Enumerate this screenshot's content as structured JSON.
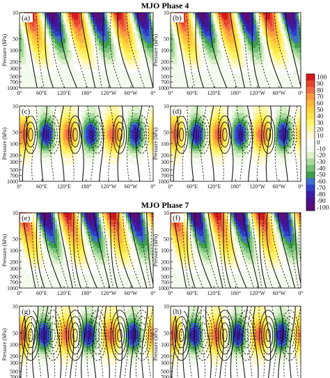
{
  "figure": {
    "sections": [
      {
        "title": "MJO Phase 4",
        "panels": [
          {
            "label": "(a)",
            "contour_style": "broad_tilted"
          },
          {
            "label": "(b)",
            "contour_style": "broad_tilted"
          },
          {
            "label": "(c)",
            "contour_style": "vertical_wavenumber6"
          },
          {
            "label": "(d)",
            "contour_style": "vertical_wavenumber6"
          }
        ]
      },
      {
        "title": "MJO Phase 7",
        "panels": [
          {
            "label": "(e)",
            "contour_style": "broad_tilted_dense"
          },
          {
            "label": "(f)",
            "contour_style": "broad_tilted_dense"
          },
          {
            "label": "(g)",
            "contour_style": "vertical_wavenumber6_dense"
          },
          {
            "label": "(h)",
            "contour_style": "vertical_wavenumber6_dense"
          }
        ]
      }
    ],
    "y_axis_label": "Pressure (hPa)",
    "y_ticks": [
      "10",
      "50",
      "100",
      "200",
      "300",
      "500",
      "700",
      "1000"
    ],
    "x_ticks": [
      "0°",
      "60°E",
      "120°E",
      "180°",
      "120°W",
      "60°W",
      "0°"
    ],
    "colorbar": {
      "labels": [
        "100",
        "90",
        "80",
        "70",
        "60",
        "50",
        "40",
        "30",
        "20",
        "10",
        "0",
        "-10",
        "-20",
        "-30",
        "-40",
        "-50",
        "-60",
        "-70",
        "-80",
        "-90",
        "-100"
      ],
      "colors": [
        "#d7191c",
        "#e8452c",
        "#f46d43",
        "#fa9a40",
        "#fdb63c",
        "#fed13e",
        "#fee545",
        "#fff267",
        "#fff6a2",
        "#fffad8",
        "#ffffff",
        "#f4fbee",
        "#d9f0c8",
        "#a8db9c",
        "#73c277",
        "#3e9f49",
        "#3f6fd0",
        "#2f3fc8",
        "#3b1fa8",
        "#4a128f",
        "#5a0e78"
      ]
    }
  }
}
